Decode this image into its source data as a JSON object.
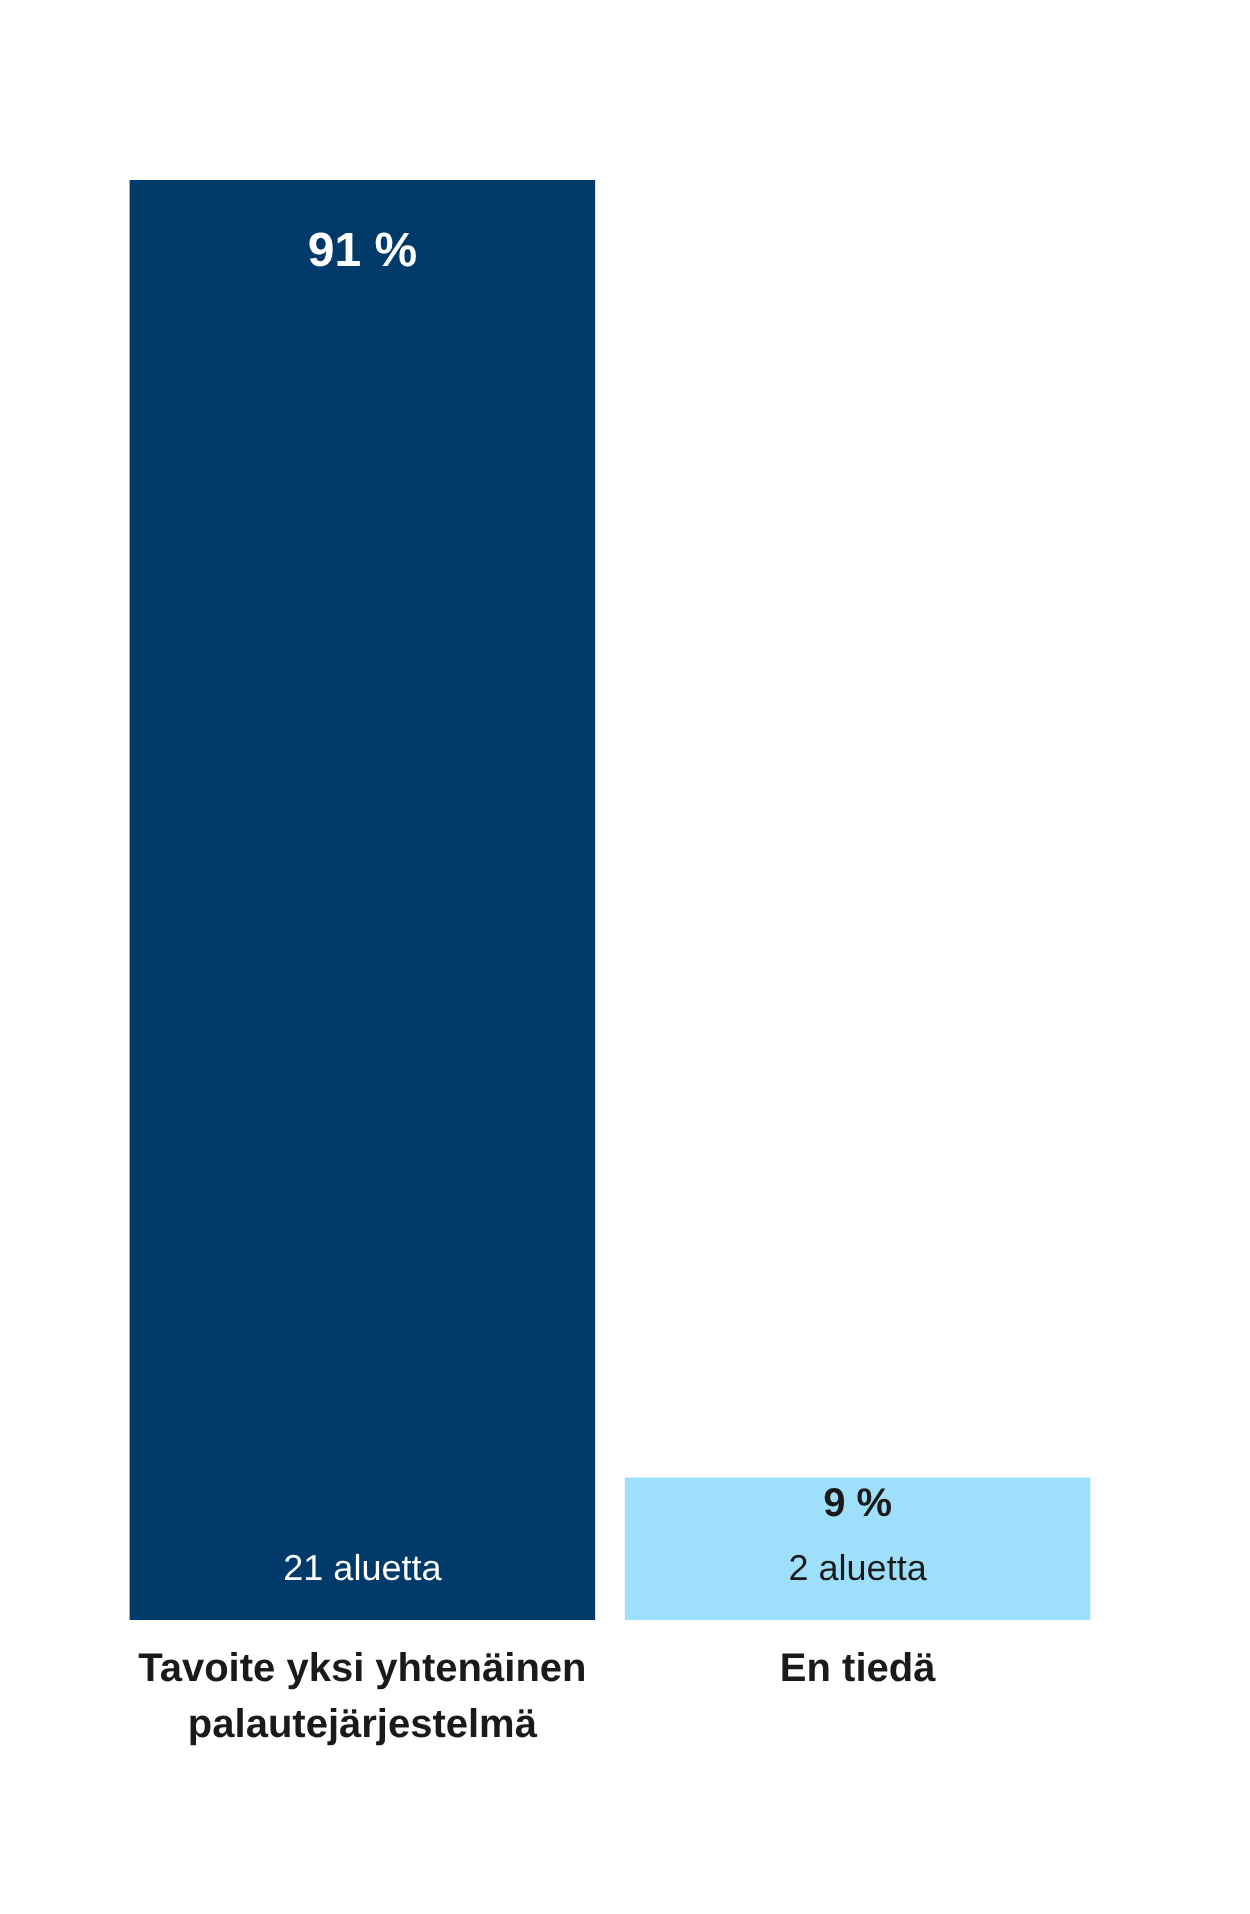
{
  "chart_data": {
    "type": "bar",
    "categories": [
      "Tavoite yksi yhtenäinen palautejärjestelmä",
      "En tiedä"
    ],
    "values": [
      91,
      9
    ],
    "colors": [
      "#003a6b",
      "#9ee0fb"
    ],
    "value_labels": [
      "91 %",
      "9 %"
    ],
    "annotations": [
      "21 aluetta",
      "2 aluetta"
    ],
    "grid": false
  }
}
